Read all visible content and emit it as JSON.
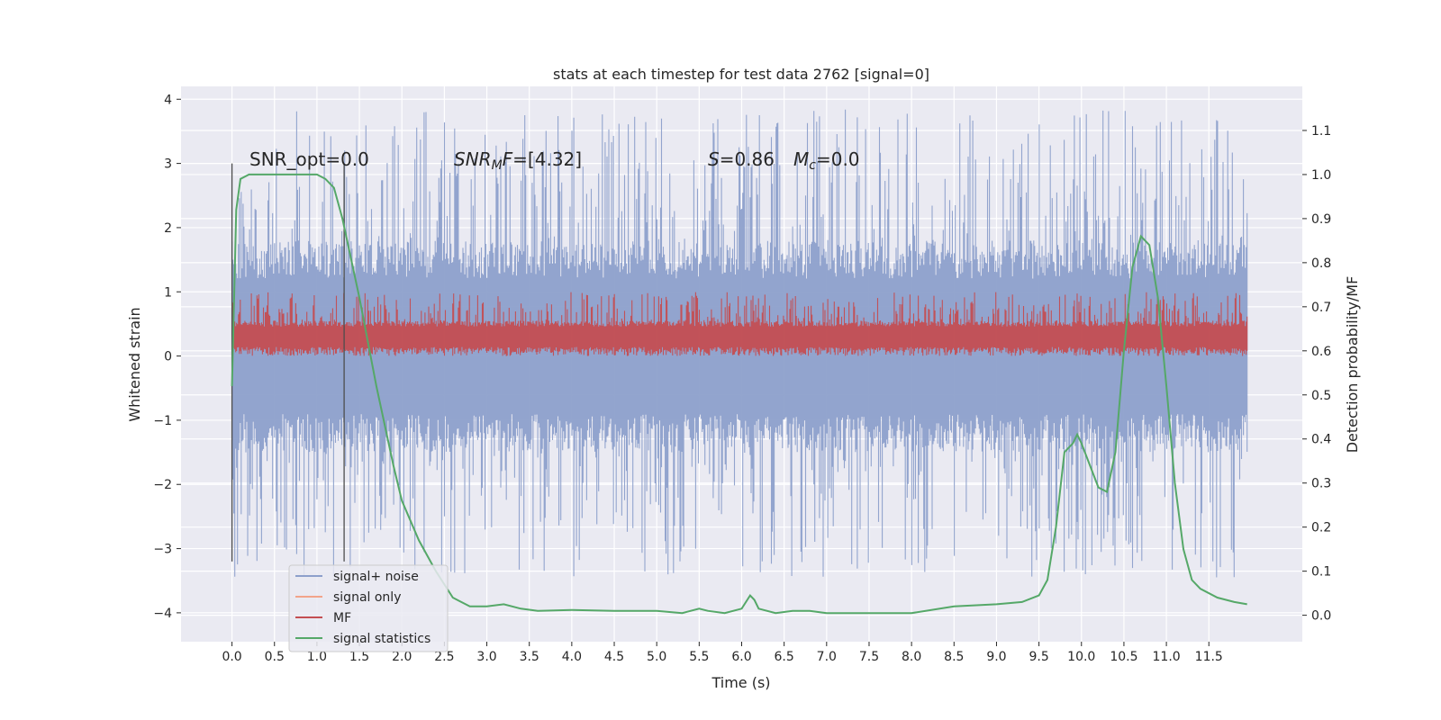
{
  "chart_data": {
    "type": "line",
    "title": "stats at each timestep for test data 2762 [signal=0]",
    "xlabel": "Time (s)",
    "ylabel": "Whitened strain",
    "y2label": "Detection probability/MF",
    "xlim": [
      -0.6,
      12.6
    ],
    "ylim": [
      -4.45,
      4.2
    ],
    "y2lim": [
      -0.06,
      1.2
    ],
    "x_ticks": [
      "0.0",
      "0.5",
      "1.0",
      "1.5",
      "2.0",
      "2.5",
      "3.0",
      "3.5",
      "4.0",
      "4.5",
      "5.0",
      "5.5",
      "6.0",
      "6.5",
      "7.0",
      "7.5",
      "8.0",
      "8.5",
      "9.0",
      "9.5",
      "10.0",
      "10.5",
      "11.0",
      "11.5"
    ],
    "y_ticks": [
      "4",
      "3",
      "2",
      "1",
      "0",
      "−1",
      "−2",
      "−3",
      "−4"
    ],
    "y2_ticks": [
      "1.1",
      "1.0",
      "0.9",
      "0.8",
      "0.7",
      "0.6",
      "0.5",
      "0.4",
      "0.3",
      "0.2",
      "0.1",
      "0.0"
    ],
    "grid": true,
    "legend_position": "lower-left",
    "annotations": {
      "snr_opt": "SNR_opt=0.0",
      "snr_mf_sym": "SNR",
      "snr_mf_sub": "M",
      "snr_mf_sym2": "F",
      "snr_mf_val": "=[4.32]",
      "s_sym": "S",
      "s_val": "=0.86",
      "mc_sym": "M",
      "mc_sub": "c",
      "mc_val": "=0.0"
    },
    "vlines_x": [
      0.0,
      1.32
    ],
    "series": [
      {
        "name": "signal+ noise",
        "color": "#8da0cb",
        "kind": "noise-band",
        "x_range": [
          0.0,
          11.95
        ],
        "typical_band": [
          -1.5,
          1.8
        ],
        "spike_max": 3.85,
        "spike_min": -3.45
      },
      {
        "name": "signal only",
        "color": "#f2a48a",
        "kind": "flat",
        "values": []
      },
      {
        "name": "MF",
        "color": "#c44e52",
        "kind": "noise-band",
        "x_range": [
          0.0,
          11.95
        ],
        "typical_band": [
          0.05,
          0.55
        ],
        "spike_max": 1.0,
        "spike_min": 0.0
      },
      {
        "name": "signal statistics",
        "color": "#55a868",
        "axis": "right",
        "x": [
          0.0,
          0.05,
          0.1,
          0.2,
          0.3,
          0.5,
          0.8,
          1.0,
          1.1,
          1.2,
          1.3,
          1.5,
          1.7,
          1.9,
          2.0,
          2.2,
          2.4,
          2.6,
          2.8,
          3.0,
          3.2,
          3.4,
          3.6,
          4.0,
          4.5,
          5.0,
          5.3,
          5.5,
          5.6,
          5.8,
          6.0,
          6.1,
          6.15,
          6.2,
          6.4,
          6.6,
          6.8,
          7.0,
          7.5,
          8.0,
          8.5,
          9.0,
          9.3,
          9.5,
          9.6,
          9.7,
          9.8,
          9.9,
          9.95,
          10.0,
          10.1,
          10.2,
          10.3,
          10.4,
          10.5,
          10.6,
          10.7,
          10.8,
          10.9,
          11.0,
          11.1,
          11.2,
          11.3,
          11.4,
          11.6,
          11.8,
          11.95
        ],
        "values": [
          0.52,
          0.92,
          0.99,
          1.0,
          1.0,
          1.0,
          1.0,
          1.0,
          0.99,
          0.97,
          0.9,
          0.72,
          0.52,
          0.34,
          0.26,
          0.17,
          0.1,
          0.04,
          0.02,
          0.02,
          0.025,
          0.015,
          0.01,
          0.012,
          0.01,
          0.01,
          0.005,
          0.015,
          0.01,
          0.005,
          0.015,
          0.045,
          0.035,
          0.015,
          0.005,
          0.01,
          0.01,
          0.005,
          0.005,
          0.005,
          0.02,
          0.025,
          0.03,
          0.045,
          0.08,
          0.2,
          0.37,
          0.39,
          0.41,
          0.39,
          0.34,
          0.29,
          0.28,
          0.37,
          0.6,
          0.79,
          0.86,
          0.84,
          0.72,
          0.52,
          0.3,
          0.15,
          0.08,
          0.06,
          0.04,
          0.03,
          0.025
        ]
      }
    ]
  }
}
